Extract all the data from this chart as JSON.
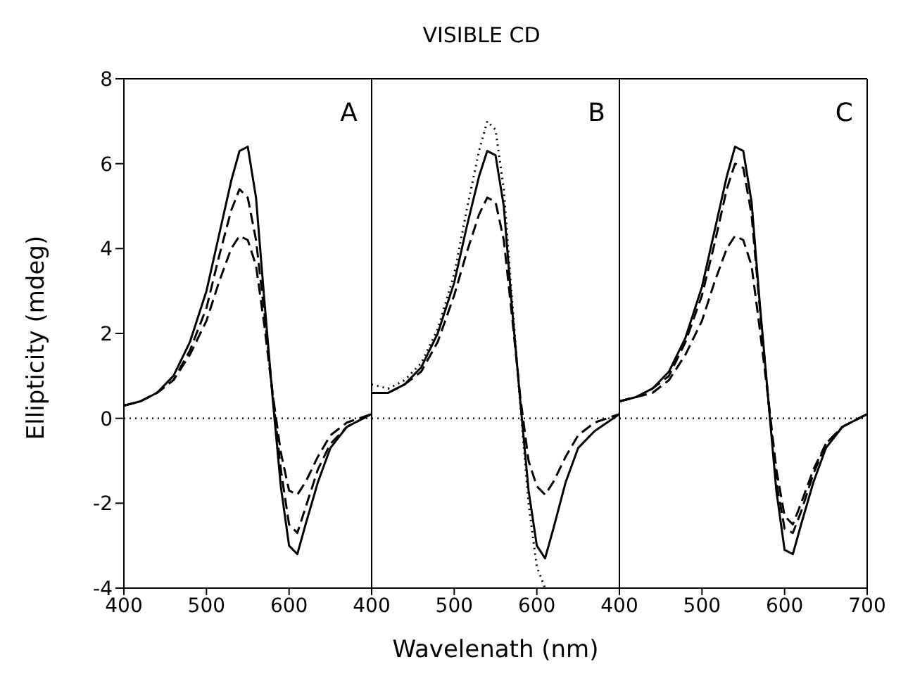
{
  "chart_data": [
    {
      "type": "line",
      "ylabel": "Ellipticity (mdeg)",
      "annotations": [
        "A"
      ],
      "x": [
        400,
        420,
        440,
        460,
        480,
        500,
        515,
        530,
        540,
        550,
        560,
        570,
        580,
        590,
        600,
        610,
        620,
        635,
        650,
        670,
        700
      ],
      "xlim": [
        400,
        700
      ],
      "xticks": [
        400,
        500,
        600,
        {
          "value": 700,
          "label": null
        }
      ],
      "ylim": [
        -4,
        8
      ],
      "yticks": [
        -4,
        -2,
        0,
        2,
        4,
        6,
        8
      ],
      "marker": "none",
      "ref_lines": [
        {
          "axis": "y",
          "value": 0,
          "line_style": "dotted"
        }
      ],
      "series": [
        {
          "color": "#000000",
          "line_style": "solid",
          "values": [
            0.3,
            0.4,
            0.6,
            1.0,
            1.8,
            3.0,
            4.3,
            5.6,
            6.3,
            6.4,
            5.2,
            2.8,
            0.5,
            -1.6,
            -3.0,
            -3.2,
            -2.5,
            -1.5,
            -0.7,
            -0.2,
            0.1
          ]
        },
        {
          "color": "#000000",
          "line_style": "dashed",
          "values": [
            0.3,
            0.4,
            0.6,
            0.9,
            1.6,
            2.6,
            3.8,
            4.9,
            5.4,
            5.2,
            4.2,
            2.5,
            0.6,
            -1.2,
            -2.5,
            -2.7,
            -2.1,
            -1.2,
            -0.6,
            -0.2,
            0.1
          ]
        },
        {
          "color": "#000000",
          "line_style": "dashed",
          "values": [
            0.3,
            0.4,
            0.6,
            0.9,
            1.5,
            2.3,
            3.2,
            4.0,
            4.3,
            4.2,
            3.6,
            2.2,
            0.6,
            -0.8,
            -1.7,
            -1.8,
            -1.5,
            -0.9,
            -0.4,
            -0.1,
            0.1
          ]
        }
      ]
    },
    {
      "type": "line",
      "title": "VISIBLE CD",
      "xlabel": "Wavelenath (nm)",
      "annotations": [
        "B"
      ],
      "tick_labels": "x",
      "x": [
        400,
        420,
        440,
        460,
        480,
        500,
        515,
        530,
        540,
        550,
        560,
        570,
        580,
        590,
        600,
        610,
        620,
        635,
        650,
        670,
        700
      ],
      "xlim": [
        400,
        700
      ],
      "xticks": [
        400,
        500,
        600,
        {
          "value": 700,
          "label": null
        }
      ],
      "ylim": [
        -4,
        8
      ],
      "marker": "none",
      "ref_lines": [
        {
          "axis": "y",
          "value": 0,
          "line_style": "dotted"
        }
      ],
      "series": [
        {
          "color": "#000000",
          "line_style": "solid",
          "values": [
            0.6,
            0.6,
            0.8,
            1.2,
            2.0,
            3.2,
            4.5,
            5.7,
            6.3,
            6.2,
            5.0,
            2.6,
            0.4,
            -1.7,
            -3.0,
            -3.3,
            -2.6,
            -1.5,
            -0.7,
            -0.3,
            0.1
          ]
        },
        {
          "color": "#000000",
          "line_style": "dashed",
          "values": [
            0.6,
            0.6,
            0.8,
            1.1,
            1.8,
            2.9,
            3.9,
            4.8,
            5.2,
            5.1,
            4.2,
            2.4,
            0.5,
            -1.0,
            -1.6,
            -1.8,
            -1.5,
            -0.9,
            -0.4,
            -0.1,
            0.1
          ]
        },
        {
          "color": "#000000",
          "line_style": "dotted",
          "values": [
            0.8,
            0.7,
            0.9,
            1.3,
            2.1,
            3.4,
            4.9,
            6.3,
            7.0,
            6.8,
            5.4,
            2.8,
            0.3,
            -2.0,
            -3.5,
            -4.0,
            null,
            null,
            null,
            null,
            null
          ]
        }
      ]
    },
    {
      "type": "line",
      "annotations": [
        "C"
      ],
      "tick_labels": "x",
      "x": [
        400,
        420,
        440,
        460,
        480,
        500,
        515,
        530,
        540,
        550,
        560,
        570,
        580,
        590,
        600,
        610,
        620,
        635,
        650,
        670,
        700
      ],
      "xlim": [
        400,
        700
      ],
      "xticks": [
        400,
        500,
        600,
        700
      ],
      "ylim": [
        -4,
        8
      ],
      "marker": "none",
      "ref_lines": [
        {
          "axis": "y",
          "value": 0,
          "line_style": "dotted"
        }
      ],
      "series": [
        {
          "color": "#000000",
          "line_style": "solid",
          "values": [
            0.4,
            0.5,
            0.7,
            1.1,
            1.9,
            3.1,
            4.4,
            5.7,
            6.4,
            6.3,
            5.1,
            2.7,
            0.5,
            -1.7,
            -3.1,
            -3.2,
            -2.5,
            -1.5,
            -0.7,
            -0.2,
            0.1
          ]
        },
        {
          "color": "#000000",
          "line_style": "dashed",
          "values": [
            0.4,
            0.5,
            0.7,
            1.0,
            1.8,
            2.9,
            4.1,
            5.4,
            6.0,
            5.9,
            4.8,
            2.6,
            0.5,
            -1.5,
            -2.6,
            -2.7,
            -2.2,
            -1.3,
            -0.6,
            -0.2,
            0.1
          ]
        },
        {
          "color": "#000000",
          "line_style": "dashed",
          "values": [
            0.4,
            0.5,
            0.6,
            0.9,
            1.5,
            2.3,
            3.2,
            4.0,
            4.3,
            4.2,
            3.6,
            2.1,
            0.5,
            -1.2,
            -2.3,
            -2.5,
            -2.0,
            -1.2,
            -0.6,
            -0.2,
            0.1
          ]
        }
      ]
    }
  ]
}
